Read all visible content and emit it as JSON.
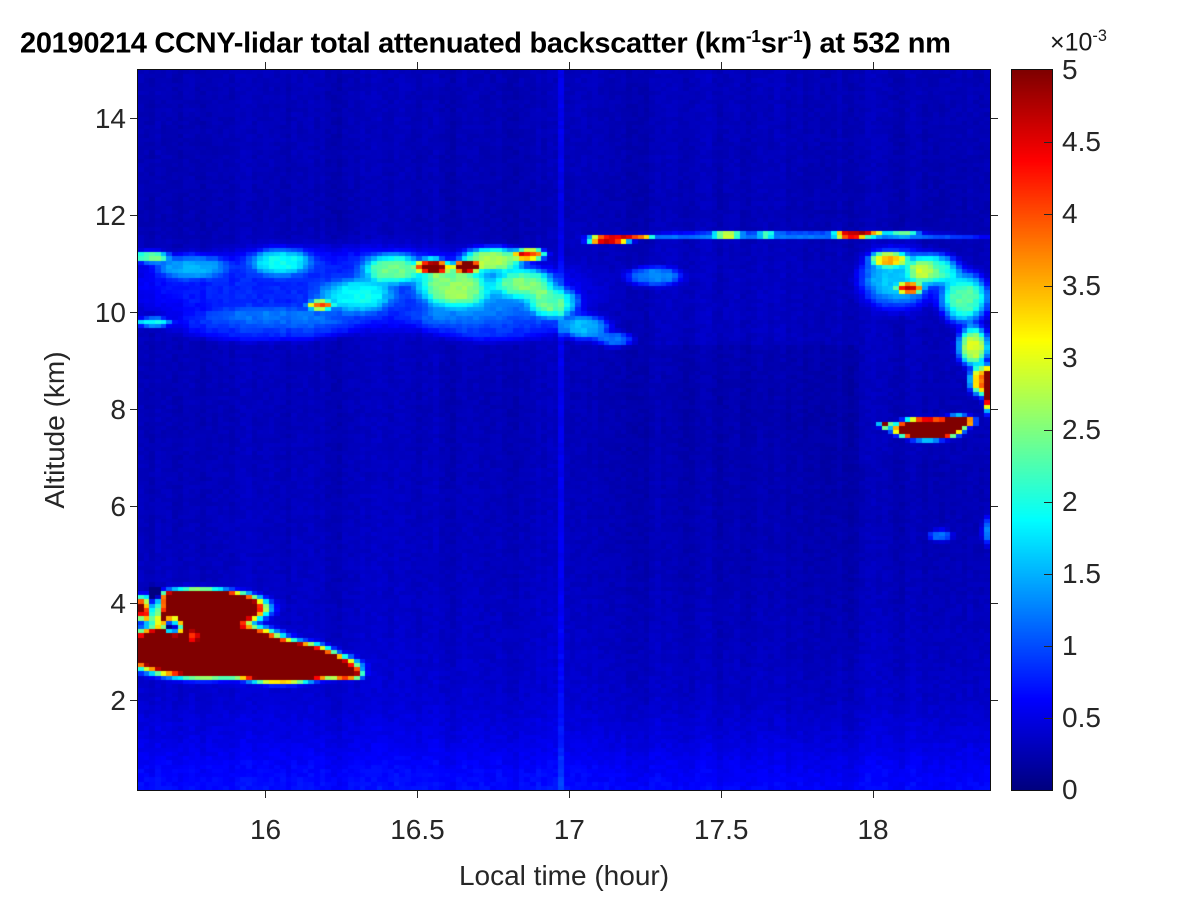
{
  "title": {
    "part1": "20190214 CCNY-lidar total attenuated backscatter (km",
    "sup1": "-1",
    "part2": "sr",
    "sup2": "-1",
    "part3": ") at 532 nm"
  },
  "colors": {
    "background": "#ffffff",
    "title_text": "#000000",
    "tick_text": "#262626",
    "axis_line": "#111111"
  },
  "axes": {
    "x": {
      "label": "Local time (hour)",
      "ticks": [
        16,
        16.5,
        17,
        17.5,
        18
      ],
      "tick_labels": [
        "16",
        "16.5",
        "17",
        "17.5",
        "18"
      ],
      "range": [
        15.58,
        18.385
      ]
    },
    "y": {
      "label": "Altitude (km)",
      "ticks": [
        2,
        4,
        6,
        8,
        10,
        12,
        14
      ],
      "tick_labels": [
        "2",
        "4",
        "6",
        "8",
        "10",
        "12",
        "14"
      ],
      "range": [
        0.155,
        15.0
      ]
    }
  },
  "colorbar": {
    "exponent_prefix": "×10",
    "exponent_sup": "-3",
    "tick_values": [
      0,
      0.5,
      1,
      1.5,
      2,
      2.5,
      3,
      3.5,
      4,
      4.5,
      5
    ],
    "tick_labels": [
      "0",
      "0.5",
      "1",
      "1.5",
      "2",
      "2.5",
      "3",
      "3.5",
      "4",
      "4.5",
      "5"
    ],
    "colormap": "jet",
    "clim": [
      0,
      5
    ]
  },
  "chart_data": {
    "type": "heatmap",
    "title": "20190214 CCNY-lidar total attenuated backscatter (km-1 sr-1) at 532 nm",
    "xlabel": "Local time (hour)",
    "ylabel": "Altitude (km)",
    "colormap": "jet",
    "value_scale": "1e-3 km^-1 sr^-1",
    "clim": [
      0,
      5
    ],
    "x_range": [
      15.58,
      18.385
    ],
    "y_range": [
      0.155,
      15.0
    ],
    "grid": false,
    "background_profile_format": "[altitude_km, backscatter_value_1e-3]",
    "background_profile": [
      [
        0.155,
        0.68
      ],
      [
        0.6,
        0.62
      ],
      [
        1.2,
        0.5
      ],
      [
        2.0,
        0.4
      ],
      [
        3.0,
        0.36
      ],
      [
        4.5,
        0.32
      ],
      [
        6.0,
        0.3
      ],
      [
        8.0,
        0.28
      ],
      [
        9.5,
        0.3
      ],
      [
        11.0,
        0.3
      ],
      [
        12.0,
        0.26
      ],
      [
        15.0,
        0.28
      ]
    ],
    "shades_format": "[t_start_hour, t_end_hour, alt_start_km, alt_end_km, delta_value]",
    "shades": [
      [
        17.3,
        17.95,
        0.15,
        9.3,
        -0.07
      ],
      [
        17.0,
        17.3,
        0.15,
        9.3,
        -0.035
      ],
      [
        17.95,
        18.4,
        0.15,
        7.0,
        -0.03
      ],
      [
        16.96,
        16.99,
        0.15,
        15.0,
        0.22
      ]
    ],
    "features_format": "[time_center_hour, altitude_center_km, halfwidth_hour, halfheight_km, peak_value_1e-3, edge_sharpness]",
    "features": [
      [
        15.8,
        3.05,
        0.26,
        0.55,
        9.0,
        3
      ],
      [
        15.78,
        3.9,
        0.21,
        0.38,
        9.0,
        3
      ],
      [
        16.05,
        2.8,
        0.18,
        0.42,
        8.0,
        3
      ],
      [
        16.2,
        2.7,
        0.1,
        0.22,
        6.0,
        2
      ],
      [
        16.27,
        2.55,
        0.05,
        0.12,
        4.0,
        2
      ],
      [
        15.64,
        3.95,
        0.035,
        0.3,
        -6.5,
        2
      ],
      [
        15.7,
        3.55,
        0.035,
        0.25,
        -6.5,
        2
      ],
      [
        15.76,
        3.3,
        0.03,
        0.18,
        -5.0,
        2
      ],
      [
        16.28,
        10.5,
        0.75,
        0.85,
        0.5,
        3
      ],
      [
        15.62,
        11.15,
        0.06,
        0.12,
        2.0,
        2
      ],
      [
        15.63,
        9.8,
        0.06,
        0.1,
        1.6,
        2
      ],
      [
        15.75,
        10.95,
        0.12,
        0.25,
        0.9,
        2
      ],
      [
        16.05,
        11.05,
        0.1,
        0.28,
        1.2,
        2
      ],
      [
        16.18,
        10.15,
        0.04,
        0.1,
        3.0,
        2
      ],
      [
        16.3,
        10.35,
        0.12,
        0.35,
        1.1,
        2
      ],
      [
        16.42,
        10.9,
        0.1,
        0.3,
        1.6,
        2
      ],
      [
        16.55,
        10.95,
        0.05,
        0.15,
        4.2,
        2
      ],
      [
        16.62,
        10.55,
        0.12,
        0.4,
        1.8,
        2
      ],
      [
        16.66,
        10.95,
        0.04,
        0.12,
        4.5,
        2
      ],
      [
        16.75,
        11.1,
        0.1,
        0.25,
        2.2,
        2
      ],
      [
        16.87,
        11.2,
        0.05,
        0.12,
        3.6,
        2
      ],
      [
        16.85,
        10.6,
        0.1,
        0.3,
        1.8,
        2
      ],
      [
        16.95,
        10.2,
        0.08,
        0.3,
        1.5,
        2
      ],
      [
        17.05,
        9.7,
        0.08,
        0.25,
        1.2,
        2
      ],
      [
        17.15,
        9.45,
        0.06,
        0.15,
        0.9,
        2
      ],
      [
        17.28,
        10.75,
        0.09,
        0.2,
        1.0,
        2
      ],
      [
        16.0,
        9.75,
        0.3,
        0.35,
        0.5,
        3
      ],
      [
        16.75,
        9.9,
        0.25,
        0.5,
        0.6,
        3
      ],
      [
        17.75,
        11.58,
        0.68,
        0.07,
        0.9,
        4
      ],
      [
        17.13,
        11.5,
        0.07,
        0.08,
        4.6,
        2
      ],
      [
        17.22,
        11.55,
        0.05,
        0.06,
        3.0,
        2
      ],
      [
        17.52,
        11.6,
        0.05,
        0.07,
        2.2,
        2
      ],
      [
        17.65,
        11.6,
        0.03,
        0.06,
        1.5,
        2
      ],
      [
        17.93,
        11.6,
        0.06,
        0.07,
        4.2,
        2
      ],
      [
        18.0,
        11.62,
        0.04,
        0.06,
        2.5,
        2
      ],
      [
        18.1,
        11.62,
        0.05,
        0.06,
        1.8,
        2
      ],
      [
        18.08,
        10.7,
        0.12,
        0.6,
        1.3,
        2
      ],
      [
        18.05,
        11.1,
        0.06,
        0.15,
        2.2,
        2
      ],
      [
        18.12,
        10.5,
        0.04,
        0.12,
        3.2,
        2
      ],
      [
        18.2,
        10.9,
        0.08,
        0.3,
        1.8,
        2
      ],
      [
        18.3,
        10.3,
        0.08,
        0.5,
        2.0,
        2
      ],
      [
        18.33,
        9.3,
        0.05,
        0.4,
        2.6,
        2
      ],
      [
        18.36,
        8.6,
        0.04,
        0.3,
        3.4,
        2
      ],
      [
        18.39,
        8.4,
        0.025,
        0.45,
        6.0,
        2
      ],
      [
        18.18,
        7.6,
        0.11,
        0.22,
        7.0,
        3
      ],
      [
        18.28,
        7.75,
        0.05,
        0.12,
        6.0,
        2
      ],
      [
        18.04,
        7.68,
        0.02,
        0.06,
        5.5,
        2
      ],
      [
        18.22,
        5.4,
        0.04,
        0.12,
        0.9,
        2
      ],
      [
        18.39,
        5.5,
        0.03,
        0.3,
        1.0,
        2
      ]
    ],
    "noise": {
      "speckle_amplitude": 0.07,
      "column_stripe_amplitude": 0.08
    }
  }
}
